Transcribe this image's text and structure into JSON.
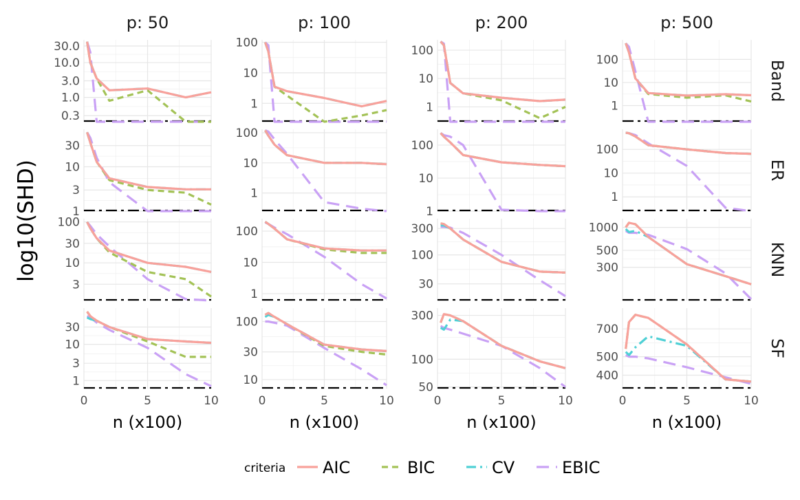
{
  "chart_data": {
    "type": "line",
    "y_axis_label": "log10(SHD)",
    "x_axis_label": "n (x100)",
    "x_range": [
      0,
      10
    ],
    "x_ticks": [
      0,
      5,
      10
    ],
    "x": [
      0.25,
      0.5,
      1,
      2,
      5,
      8,
      10
    ],
    "legend": {
      "title": "criteria",
      "entries": [
        {
          "name": "AIC",
          "color": "#f8a19b",
          "dash": "solid"
        },
        {
          "name": "BIC",
          "color": "#a3c256",
          "dash": "dashed"
        },
        {
          "name": "CV",
          "color": "#4fd0d5",
          "dash": "dotdash"
        },
        {
          "name": "EBIC",
          "color": "#c9a1f5",
          "dash": "longdash"
        }
      ]
    },
    "columns": [
      "p: 50",
      "p: 100",
      "p: 200",
      "p: 500"
    ],
    "rows": [
      "Band",
      "ER",
      "KNN",
      "SF"
    ],
    "reference_line": {
      "style": "dotdash",
      "color": "#000000"
    },
    "panels": [
      {
        "row": "Band",
        "col": "p: 50",
        "y_ticks": [
          0.3,
          1.0,
          3.0,
          10.0,
          30.0
        ],
        "y_tick_labels": [
          "0.3",
          "1.0",
          "3.0",
          "10.0",
          "30.0"
        ],
        "ylim": [
          0.2,
          45
        ],
        "series": {
          "AIC": [
            40,
            10,
            3.5,
            1.6,
            1.8,
            1.0,
            1.4
          ],
          "BIC": [
            40,
            10,
            3.5,
            0.8,
            1.6,
            0.2,
            0.2
          ],
          "CV": [
            40,
            10,
            3.5,
            1.6,
            1.8,
            1.0,
            1.4
          ],
          "EBIC": [
            40,
            20,
            0.2,
            0.2,
            0.2,
            0.2,
            0.2
          ]
        }
      },
      {
        "row": "Band",
        "col": "p: 100",
        "y_ticks": [
          1,
          10,
          100
        ],
        "y_tick_labels": [
          "1",
          "10",
          "100"
        ],
        "ylim": [
          0.25,
          120
        ],
        "series": {
          "AIC": [
            100,
            50,
            3.5,
            2.5,
            1.5,
            0.8,
            1.2
          ],
          "BIC": [
            100,
            50,
            3.5,
            1.8,
            0.25,
            0.4,
            0.6
          ],
          "CV": [
            100,
            50,
            3.5,
            2.5,
            1.5,
            0.8,
            1.2
          ],
          "EBIC": [
            100,
            80,
            0.25,
            0.25,
            0.25,
            0.25,
            0.25
          ]
        }
      },
      {
        "row": "Band",
        "col": "p: 200",
        "y_ticks": [
          1,
          10,
          100
        ],
        "y_tick_labels": [
          "1",
          "10",
          "100"
        ],
        "ylim": [
          0.3,
          230
        ],
        "series": {
          "AIC": [
            200,
            150,
            7,
            3,
            2.1,
            1.6,
            1.8
          ],
          "BIC": [
            200,
            150,
            7,
            3,
            1.7,
            0.4,
            1.0
          ],
          "CV": [
            200,
            150,
            7,
            3,
            2.1,
            1.6,
            1.8
          ],
          "EBIC": [
            200,
            170,
            0.3,
            0.3,
            0.3,
            0.3,
            0.3
          ]
        }
      },
      {
        "row": "Band",
        "col": "p: 500",
        "y_ticks": [
          1,
          10,
          100
        ],
        "y_tick_labels": [
          "1",
          "10",
          "100"
        ],
        "ylim": [
          0.2,
          700
        ],
        "series": {
          "AIC": [
            500,
            200,
            15,
            3.5,
            2.7,
            3.1,
            2.8
          ],
          "BIC": [
            500,
            200,
            15,
            3.2,
            2.2,
            2.8,
            1.5
          ],
          "CV": [
            500,
            200,
            15,
            3.5,
            2.7,
            3.1,
            2.8
          ],
          "EBIC": [
            500,
            350,
            30,
            0.2,
            0.2,
            0.2,
            0.2
          ]
        }
      },
      {
        "row": "ER",
        "col": "p: 50",
        "y_ticks": [
          1,
          3,
          10,
          30
        ],
        "y_tick_labels": [
          "1",
          "3",
          "10",
          "30"
        ],
        "ylim": [
          1,
          70
        ],
        "series": {
          "AIC": [
            60,
            35,
            13,
            5.5,
            3.5,
            3.1,
            3.1
          ],
          "BIC": [
            60,
            35,
            13,
            5,
            3,
            2.6,
            1.4
          ],
          "CV": [
            60,
            35,
            13,
            5.5,
            3.5,
            3.1,
            3.1
          ],
          "EBIC": [
            60,
            45,
            16,
            4.5,
            1,
            1,
            1
          ]
        }
      },
      {
        "row": "ER",
        "col": "p: 100",
        "y_ticks": [
          1,
          10,
          100
        ],
        "y_tick_labels": [
          "1",
          "10",
          "100"
        ],
        "ylim": [
          0.25,
          130
        ],
        "series": {
          "AIC": [
            120,
            80,
            40,
            18,
            10,
            10,
            9
          ],
          "BIC": [
            120,
            80,
            40,
            18,
            10,
            10,
            9
          ],
          "CV": [
            120,
            80,
            40,
            18,
            10,
            10,
            9
          ],
          "EBIC": [
            120,
            110,
            60,
            20,
            0.5,
            0.3,
            0.25
          ]
        }
      },
      {
        "row": "ER",
        "col": "p: 200",
        "y_ticks": [
          1,
          10,
          100
        ],
        "y_tick_labels": [
          "1",
          "10",
          "100"
        ],
        "ylim": [
          1,
          300
        ],
        "series": {
          "AIC": [
            230,
            180,
            120,
            50,
            30,
            25,
            23
          ],
          "BIC": [
            230,
            180,
            120,
            50,
            30,
            25,
            23
          ],
          "CV": [
            230,
            180,
            120,
            50,
            30,
            25,
            23
          ],
          "EBIC": [
            230,
            200,
            180,
            100,
            1.1,
            1,
            1
          ]
        }
      },
      {
        "row": "ER",
        "col": "p: 500",
        "y_ticks": [
          1,
          10,
          100
        ],
        "y_tick_labels": [
          "1",
          "10",
          "100"
        ],
        "ylim": [
          0.25,
          700
        ],
        "series": {
          "AIC": [
            500,
            480,
            350,
            150,
            100,
            70,
            65
          ],
          "BIC": [
            500,
            480,
            350,
            150,
            100,
            70,
            65
          ],
          "CV": [
            500,
            480,
            350,
            150,
            100,
            70,
            65
          ],
          "EBIC": [
            500,
            480,
            400,
            180,
            20,
            0.35,
            0.25
          ]
        }
      },
      {
        "row": "KNN",
        "col": "p: 50",
        "y_ticks": [
          3,
          10,
          30,
          100
        ],
        "y_tick_labels": [
          "3",
          "10",
          "30",
          "100"
        ],
        "ylim": [
          1.2,
          120
        ],
        "series": {
          "AIC": [
            100,
            70,
            40,
            20,
            10,
            8,
            6
          ],
          "BIC": [
            100,
            70,
            40,
            18,
            6,
            4,
            1.5
          ],
          "CV": [
            100,
            70,
            40,
            20,
            10,
            8,
            6
          ],
          "EBIC": [
            100,
            80,
            50,
            25,
            4,
            1.3,
            1.2
          ]
        }
      },
      {
        "row": "KNN",
        "col": "p: 100",
        "y_ticks": [
          1,
          10,
          100
        ],
        "y_tick_labels": [
          "1",
          "10",
          "100"
        ],
        "ylim": [
          0.6,
          250
        ],
        "series": {
          "AIC": [
            200,
            170,
            120,
            55,
            28,
            24,
            24
          ],
          "BIC": [
            200,
            170,
            120,
            55,
            26,
            20,
            20
          ],
          "CV": [
            200,
            170,
            120,
            55,
            28,
            24,
            24
          ],
          "EBIC": [
            190,
            170,
            130,
            80,
            15,
            2,
            0.7
          ]
        }
      },
      {
        "row": "KNN",
        "col": "p: 200",
        "y_ticks": [
          30,
          100,
          300
        ],
        "y_tick_labels": [
          "30",
          "100",
          "300"
        ],
        "ylim": [
          15,
          450
        ],
        "series": {
          "AIC": [
            370,
            360,
            300,
            190,
            75,
            50,
            48
          ],
          "BIC": [
            370,
            360,
            300,
            190,
            75,
            50,
            48
          ],
          "CV": [
            340,
            340,
            300,
            190,
            75,
            50,
            48
          ],
          "EBIC": [
            320,
            320,
            310,
            250,
            100,
            35,
            18
          ]
        }
      },
      {
        "row": "KNN",
        "col": "p: 500",
        "y_ticks": [
          300,
          500,
          1000
        ],
        "y_tick_labels": [
          "300",
          "500",
          "1000"
        ],
        "ylim": [
          110,
          1300
        ],
        "series": {
          "AIC": [
            1000,
            1150,
            1100,
            750,
            330,
            230,
            180
          ],
          "BIC": [
            1000,
            1150,
            1100,
            750,
            330,
            230,
            180
          ],
          "CV": [
            950,
            870,
            900,
            750,
            330,
            230,
            180
          ],
          "EBIC": [
            900,
            850,
            850,
            800,
            520,
            250,
            115
          ]
        }
      },
      {
        "row": "SF",
        "col": "p: 50",
        "y_ticks": [
          1,
          3,
          10,
          30
        ],
        "y_tick_labels": [
          "1",
          "3",
          "10",
          "30"
        ],
        "ylim": [
          0.6,
          100
        ],
        "series": {
          "AIC": [
            80,
            60,
            45,
            30,
            14,
            12,
            11
          ],
          "BIC": [
            80,
            60,
            45,
            30,
            12,
            4.5,
            4.5
          ],
          "CV": [
            55,
            50,
            45,
            30,
            14,
            12,
            11
          ],
          "EBIC": [
            60,
            55,
            40,
            25,
            8,
            1.5,
            0.7
          ]
        }
      },
      {
        "row": "SF",
        "col": "p: 100",
        "y_ticks": [
          10,
          30,
          100
        ],
        "y_tick_labels": [
          "10",
          "30",
          "100"
        ],
        "ylim": [
          7,
          170
        ],
        "series": {
          "AIC": [
            130,
            140,
            120,
            90,
            40,
            33,
            31
          ],
          "BIC": [
            130,
            140,
            120,
            90,
            38,
            30,
            27
          ],
          "CV": [
            120,
            130,
            120,
            90,
            40,
            33,
            31
          ],
          "EBIC": [
            100,
            100,
            95,
            85,
            35,
            15,
            8
          ]
        }
      },
      {
        "row": "SF",
        "col": "p: 200",
        "y_ticks": [
          50,
          100,
          300
        ],
        "y_tick_labels": [
          "50",
          "100",
          "300"
        ],
        "ylim": [
          48,
          360
        ],
        "series": {
          "AIC": [
            250,
            310,
            300,
            260,
            140,
            95,
            80
          ],
          "BIC": [
            250,
            310,
            300,
            260,
            140,
            95,
            80
          ],
          "CV": [
            220,
            210,
            270,
            260,
            140,
            95,
            80
          ],
          "EBIC": [
            230,
            220,
            210,
            190,
            140,
            80,
            50
          ]
        }
      },
      {
        "row": "SF",
        "col": "p: 500",
        "y_ticks": [
          400,
          500,
          700
        ],
        "y_tick_labels": [
          "400",
          "500",
          "700"
        ],
        "ylim": [
          340,
          900
        ],
        "series": {
          "AIC": [
            550,
            760,
            830,
            800,
            580,
            380,
            370
          ],
          "BIC": [
            550,
            760,
            830,
            800,
            580,
            380,
            370
          ],
          "CV": [
            530,
            510,
            560,
            640,
            570,
            380,
            370
          ],
          "EBIC": [
            510,
            500,
            500,
            490,
            440,
            390,
            360
          ]
        }
      }
    ]
  }
}
